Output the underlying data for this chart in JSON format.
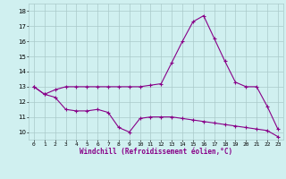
{
  "line1_x": [
    0,
    1,
    2,
    3,
    4,
    5,
    6,
    7,
    8,
    9,
    10,
    11,
    12,
    13,
    14,
    15,
    16,
    17,
    18,
    19,
    20,
    21,
    22,
    23
  ],
  "line1_y": [
    13.0,
    12.5,
    12.8,
    13.0,
    13.0,
    13.0,
    13.0,
    13.0,
    13.0,
    13.0,
    13.0,
    13.1,
    13.2,
    14.6,
    16.0,
    17.3,
    17.7,
    16.2,
    14.7,
    13.3,
    13.0,
    13.0,
    11.7,
    10.2
  ],
  "line2_x": [
    0,
    1,
    2,
    3,
    4,
    5,
    6,
    7,
    8,
    9,
    10,
    11,
    12,
    13,
    14,
    15,
    16,
    17,
    18,
    19,
    20,
    21,
    22,
    23
  ],
  "line2_y": [
    13.0,
    12.5,
    12.3,
    11.5,
    11.4,
    11.4,
    11.5,
    11.3,
    10.3,
    10.0,
    10.9,
    11.0,
    11.0,
    11.0,
    10.9,
    10.8,
    10.7,
    10.6,
    10.5,
    10.4,
    10.3,
    10.2,
    10.1,
    9.7
  ],
  "line_color": "#880088",
  "bg_color": "#d0f0f0",
  "grid_color": "#aacaca",
  "xlabel": "Windchill (Refroidissement éolien,°C)",
  "ylim": [
    9.5,
    18.5
  ],
  "xlim": [
    -0.5,
    23.5
  ],
  "yticks": [
    10,
    11,
    12,
    13,
    14,
    15,
    16,
    17,
    18
  ],
  "xticks": [
    0,
    1,
    2,
    3,
    4,
    5,
    6,
    7,
    8,
    9,
    10,
    11,
    12,
    13,
    14,
    15,
    16,
    17,
    18,
    19,
    20,
    21,
    22,
    23
  ]
}
